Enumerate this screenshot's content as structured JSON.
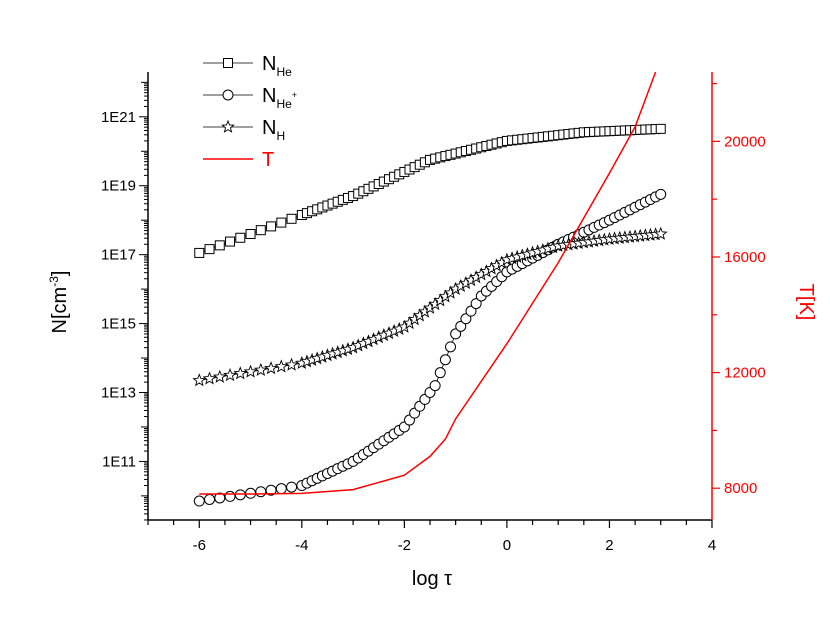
{
  "chart_data": {
    "type": "scatter",
    "xlabel": "log τ",
    "ylabel_left": "N[cm",
    "ylabel_left_sup": "-3",
    "ylabel_left_close": "]",
    "ylabel_right": "T[K]",
    "xlim": [
      -7,
      4
    ],
    "x_ticks": [
      -6,
      -4,
      -2,
      0,
      2,
      4
    ],
    "x_tick_labels": [
      "-6",
      "-4",
      "-2",
      "0",
      "2",
      "4"
    ],
    "y_left_scale": "log",
    "y_left_lim_log10": [
      9.3,
      22.3
    ],
    "y_left_ticks_log10": [
      11,
      13,
      15,
      17,
      19,
      21
    ],
    "y_left_tick_labels": [
      "1E11",
      "1E13",
      "1E15",
      "1E17",
      "1E19",
      "1E21"
    ],
    "y_right_lim": [
      6900,
      22400
    ],
    "y_right_ticks": [
      8000,
      12000,
      16000,
      20000
    ],
    "y_right_tick_labels": [
      "8000",
      "12000",
      "16000",
      "20000"
    ],
    "grid": false,
    "legend_position": "top-left",
    "colors": {
      "axis": "#000000",
      "temperature": "#ff0000"
    },
    "series": [
      {
        "key": "NHe",
        "name": "N",
        "name_sub": "He",
        "marker": "square",
        "axis": "left",
        "points_log10": [
          [
            -6.0,
            17.05
          ],
          [
            -3.0,
            18.7
          ],
          [
            -1.5,
            19.75
          ],
          [
            0.0,
            20.3
          ],
          [
            1.5,
            20.55
          ],
          [
            3.0,
            20.65
          ]
        ]
      },
      {
        "key": "NHeplus",
        "name": "N",
        "name_sub": "He",
        "name_sup": "+",
        "marker": "circle",
        "axis": "left",
        "points_log10": [
          [
            -6.0,
            9.85
          ],
          [
            -4.0,
            10.3
          ],
          [
            -3.0,
            11.0
          ],
          [
            -2.0,
            12.0
          ],
          [
            -1.4,
            13.2
          ],
          [
            -1.0,
            14.7
          ],
          [
            -0.5,
            15.8
          ],
          [
            0.0,
            16.5
          ],
          [
            1.0,
            17.3
          ],
          [
            2.0,
            18.0
          ],
          [
            3.0,
            18.75
          ]
        ]
      },
      {
        "key": "NH",
        "name": "N",
        "name_sub": "H",
        "marker": "star",
        "axis": "left",
        "points_log10": [
          [
            -6.0,
            13.35
          ],
          [
            -4.0,
            13.85
          ],
          [
            -3.0,
            14.3
          ],
          [
            -2.0,
            14.9
          ],
          [
            -1.0,
            16.0
          ],
          [
            0.0,
            16.85
          ],
          [
            1.0,
            17.25
          ],
          [
            2.0,
            17.45
          ],
          [
            3.0,
            17.6
          ]
        ]
      },
      {
        "key": "T",
        "name": "T",
        "marker": "line",
        "axis": "right",
        "points": [
          [
            -6.0,
            7800
          ],
          [
            -5.0,
            7800
          ],
          [
            -4.0,
            7820
          ],
          [
            -3.0,
            7950
          ],
          [
            -2.0,
            8450
          ],
          [
            -1.5,
            9100
          ],
          [
            -1.2,
            9700
          ],
          [
            -1.0,
            10400
          ],
          [
            0.0,
            13000
          ],
          [
            1.0,
            15800
          ],
          [
            2.0,
            18900
          ],
          [
            2.5,
            20500
          ],
          [
            2.9,
            22400
          ]
        ]
      }
    ]
  }
}
